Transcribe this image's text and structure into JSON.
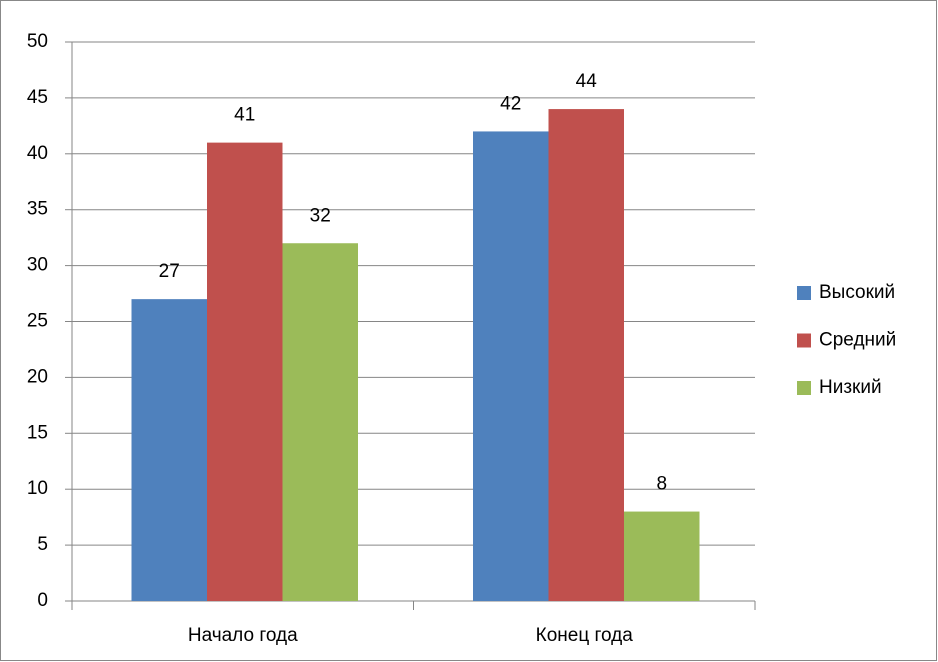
{
  "chart_data": {
    "type": "bar",
    "categories": [
      "Начало года",
      "Конец года"
    ],
    "series": [
      {
        "name": "Высокий",
        "color": "#4f81bd",
        "values": [
          27,
          42
        ]
      },
      {
        "name": "Средний",
        "color": "#c0504d",
        "values": [
          41,
          44
        ]
      },
      {
        "name": "Низкий",
        "color": "#9bbb59",
        "values": [
          32,
          8
        ]
      }
    ],
    "ylim": [
      0,
      50
    ],
    "yticks": [
      0,
      5,
      10,
      15,
      20,
      25,
      30,
      35,
      40,
      45,
      50
    ],
    "grid": true,
    "legend": "right"
  }
}
